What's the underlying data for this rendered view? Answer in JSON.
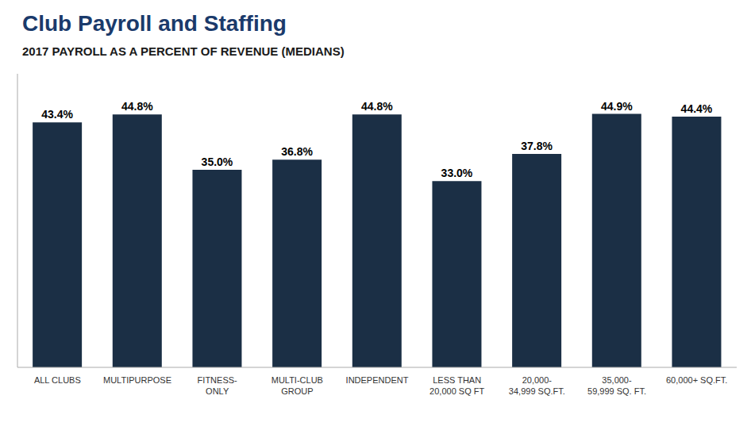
{
  "chart_data": {
    "type": "bar",
    "title": "Club Payroll and Staffing",
    "subtitle": "2017 PAYROLL AS A PERCENT OF REVENUE (MEDIANS)",
    "categories": [
      "ALL CLUBS",
      "MULTIPURPOSE",
      "FITNESS-\nONLY",
      "MULTI-CLUB\nGROUP",
      "INDEPENDENT",
      "LESS THAN\n20,000 SQ FT",
      "20,000-\n34,999 SQ.FT.",
      "35,000-\n59,999 SQ. FT.",
      "60,000+ SQ.FT."
    ],
    "values": [
      43.4,
      44.8,
      35.0,
      36.8,
      44.8,
      33.0,
      37.8,
      44.9,
      44.4
    ],
    "value_labels": [
      "43.4%",
      "44.8%",
      "35.0%",
      "36.8%",
      "44.8%",
      "33.0%",
      "37.8%",
      "44.9%",
      "44.4%"
    ],
    "data_labels": true,
    "color": "#1b2f45",
    "ylim": [
      0,
      52
    ],
    "grid": false,
    "tick_labels": "x"
  }
}
